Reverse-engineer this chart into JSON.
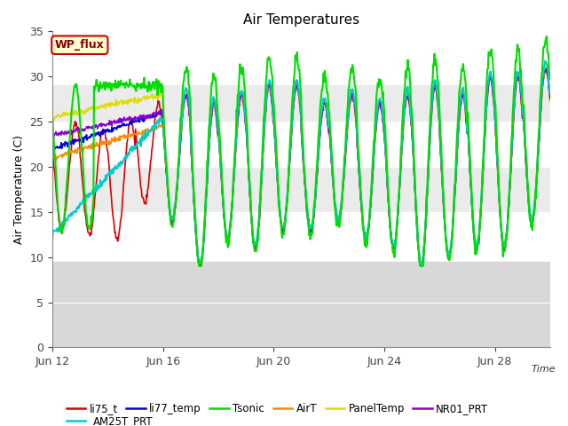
{
  "title": "Air Temperatures",
  "xlabel": "Time",
  "ylabel": "Air Temperature (C)",
  "ylim": [
    0,
    35
  ],
  "yticks": [
    0,
    5,
    10,
    15,
    20,
    25,
    30,
    35
  ],
  "date_labels": [
    "Jun 12",
    "Jun 16",
    "Jun 20",
    "Jun 24",
    "Jun 28"
  ],
  "date_positions": [
    0,
    4,
    8,
    12,
    16
  ],
  "xlim": [
    0,
    18
  ],
  "shaded_bands": [
    {
      "ymin": 0,
      "ymax": 9.5,
      "color": "#d8d8d8"
    },
    {
      "ymin": 15,
      "ymax": 20,
      "color": "#ebebeb"
    },
    {
      "ymin": 25,
      "ymax": 29,
      "color": "#ebebeb"
    }
  ],
  "series": {
    "li75_t": {
      "color": "#dd0000",
      "lw": 1.2
    },
    "li77_temp": {
      "color": "#0000dd",
      "lw": 1.2
    },
    "Tsonic": {
      "color": "#00dd00",
      "lw": 1.5
    },
    "AirT": {
      "color": "#ff8800",
      "lw": 1.2
    },
    "PanelTemp": {
      "color": "#dddd00",
      "lw": 1.2
    },
    "NR01_PRT": {
      "color": "#8800cc",
      "lw": 1.2
    },
    "AM25T_PRT": {
      "color": "#00cccc",
      "lw": 1.5
    }
  },
  "annotation_box": {
    "text": "WP_flux",
    "facecolor": "#ffffcc",
    "edgecolor": "#cc0000",
    "textcolor": "#880000"
  }
}
